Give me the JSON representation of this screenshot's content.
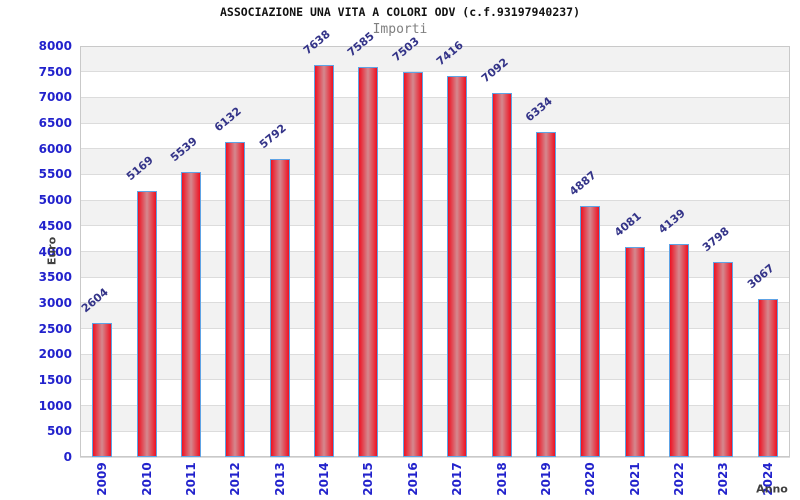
{
  "chart_data": {
    "type": "bar",
    "title": "ASSOCIAZIONE UNA VITA A COLORI ODV (c.f.93197940237)",
    "subtitle": "Importi",
    "xlabel": "Anno",
    "ylabel": "Euro",
    "categories": [
      "2009",
      "2010",
      "2011",
      "2012",
      "2013",
      "2014",
      "2015",
      "2016",
      "2017",
      "2018",
      "2019",
      "2020",
      "2021",
      "2022",
      "2023",
      "2024"
    ],
    "values": [
      2604,
      5169,
      5539,
      6132,
      5792,
      7638,
      7585,
      7503,
      7416,
      7092,
      6334,
      4887,
      4081,
      4139,
      3798,
      3067
    ],
    "ylim": [
      0,
      8000
    ],
    "y_tick_step": 500,
    "grid": true,
    "legend_position": "none",
    "colors": {
      "bar_edge": "#ee1122",
      "bar_center": "#d4898f",
      "bar_border": "#5ea3e5",
      "tick_label": "#2222cc",
      "value_label": "#333388",
      "axis_title": "#404040",
      "band_gray": "#f2f2f2",
      "band_white": "#ffffff",
      "gridline": "#dcdcdc",
      "plot_border": "#c9c9c9",
      "title_color": "#111111",
      "subtitle_color": "#808080"
    }
  }
}
